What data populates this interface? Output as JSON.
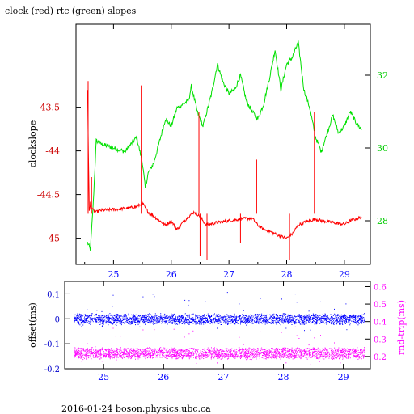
{
  "title": "clock (red) rtc (green) slopes",
  "footer": "2016-01-24  boson.physics.ubc.ca",
  "colors": {
    "clock": "#ff0000",
    "rtc": "#00e000",
    "offset": "#0000ff",
    "rndtrip": "#ff00ff",
    "axis": "#000000"
  },
  "chart_data": [
    {
      "type": "line",
      "title": "clock (red) rtc (green) slopes",
      "xlabel": "",
      "ylabel": "clockslope",
      "y2label": "",
      "xlim": [
        24.35,
        29.45
      ],
      "ylim": [
        -45.3,
        -42.55
      ],
      "y2lim": [
        26.8,
        33.4
      ],
      "xticks": [
        "25",
        "26",
        "27",
        "28",
        "29"
      ],
      "xtick_values": [
        25,
        26,
        27,
        28,
        29
      ],
      "yticks": [
        "-43.5",
        "-44",
        "-44.5",
        "-45"
      ],
      "ytick_values": [
        -43.5,
        -44,
        -44.5,
        -45
      ],
      "y2ticks": [
        "32",
        "30",
        "28"
      ],
      "y2tick_values": [
        32,
        30,
        28
      ],
      "grid": false,
      "series": [
        {
          "name": "clock",
          "axis": "left",
          "x": [
            24.55,
            24.58,
            24.6,
            24.62,
            24.65,
            24.7,
            24.8,
            25.0,
            25.2,
            25.4,
            25.45,
            25.5,
            25.6,
            25.7,
            25.8,
            25.9,
            26.0,
            26.1,
            26.2,
            26.3,
            26.4,
            26.5,
            26.55,
            26.6,
            26.8,
            27.0,
            27.2,
            27.4,
            27.5,
            27.6,
            27.7,
            27.8,
            27.9,
            28.0,
            28.1,
            28.2,
            28.3,
            28.4,
            28.5,
            28.6,
            28.8,
            29.0,
            29.1,
            29.2,
            29.3
          ],
          "y": [
            -43.3,
            -44.7,
            -44.6,
            -44.65,
            -44.68,
            -44.7,
            -44.68,
            -44.67,
            -44.66,
            -44.64,
            -44.62,
            -44.6,
            -44.7,
            -44.75,
            -44.8,
            -44.85,
            -44.8,
            -44.9,
            -44.82,
            -44.75,
            -44.7,
            -44.75,
            -44.8,
            -44.85,
            -44.82,
            -44.8,
            -44.78,
            -44.77,
            -44.85,
            -44.9,
            -44.92,
            -44.95,
            -44.98,
            -45.0,
            -44.95,
            -44.85,
            -44.82,
            -44.8,
            -44.78,
            -44.8,
            -44.82,
            -44.84,
            -44.8,
            -44.78,
            -44.76
          ]
        },
        {
          "name": "rtc",
          "axis": "right",
          "x": [
            24.55,
            24.6,
            24.65,
            24.7,
            24.8,
            25.0,
            25.2,
            25.4,
            25.5,
            25.55,
            25.6,
            25.7,
            25.9,
            26.0,
            26.1,
            26.3,
            26.35,
            26.45,
            26.55,
            26.7,
            26.8,
            26.9,
            27.0,
            27.1,
            27.2,
            27.3,
            27.4,
            27.5,
            27.6,
            27.7,
            27.8,
            27.9,
            28.0,
            28.1,
            28.2,
            28.3,
            28.4,
            28.5,
            28.6,
            28.7,
            28.8,
            28.9,
            29.0,
            29.1,
            29.2,
            29.3
          ],
          "y": [
            27.4,
            27.2,
            28.5,
            30.2,
            30.1,
            30.0,
            29.9,
            30.3,
            29.6,
            28.9,
            29.3,
            29.6,
            30.8,
            30.6,
            31.1,
            31.3,
            31.7,
            31.0,
            30.6,
            31.5,
            32.3,
            31.8,
            31.5,
            31.6,
            32.0,
            31.3,
            31.0,
            30.8,
            31.2,
            31.9,
            32.7,
            31.6,
            32.3,
            32.5,
            32.9,
            31.6,
            31.1,
            30.3,
            29.9,
            30.4,
            30.9,
            30.4,
            30.6,
            31.0,
            30.7,
            30.5
          ]
        }
      ]
    },
    {
      "type": "scatter",
      "xlabel": "",
      "ylabel": "offset(ms)",
      "y2label": "rnd-trip(ms)",
      "xlim": [
        24.35,
        29.45
      ],
      "ylim": [
        -0.2,
        0.15
      ],
      "y2lim": [
        0.13,
        0.63
      ],
      "xticks": [
        "25",
        "26",
        "27",
        "28",
        "29"
      ],
      "xtick_values": [
        25,
        26,
        27,
        28,
        29
      ],
      "yticks": [
        "0.1",
        "0",
        "-0.1",
        "-0.2"
      ],
      "ytick_values": [
        0.1,
        0,
        -0.1,
        -0.2
      ],
      "y2ticks": [
        "0.6",
        "0.5",
        "0.4",
        "0.3",
        "0.2"
      ],
      "y2tick_values": [
        0.6,
        0.5,
        0.4,
        0.3,
        0.2
      ],
      "grid": false,
      "series": [
        {
          "name": "offset",
          "axis": "left",
          "x_range": [
            24.5,
            29.35
          ],
          "center": 0.0,
          "spread": 0.02
        },
        {
          "name": "rnd-trip",
          "axis": "right",
          "x_range": [
            24.5,
            29.35
          ],
          "center": 0.22,
          "spread": 0.03
        }
      ]
    }
  ]
}
